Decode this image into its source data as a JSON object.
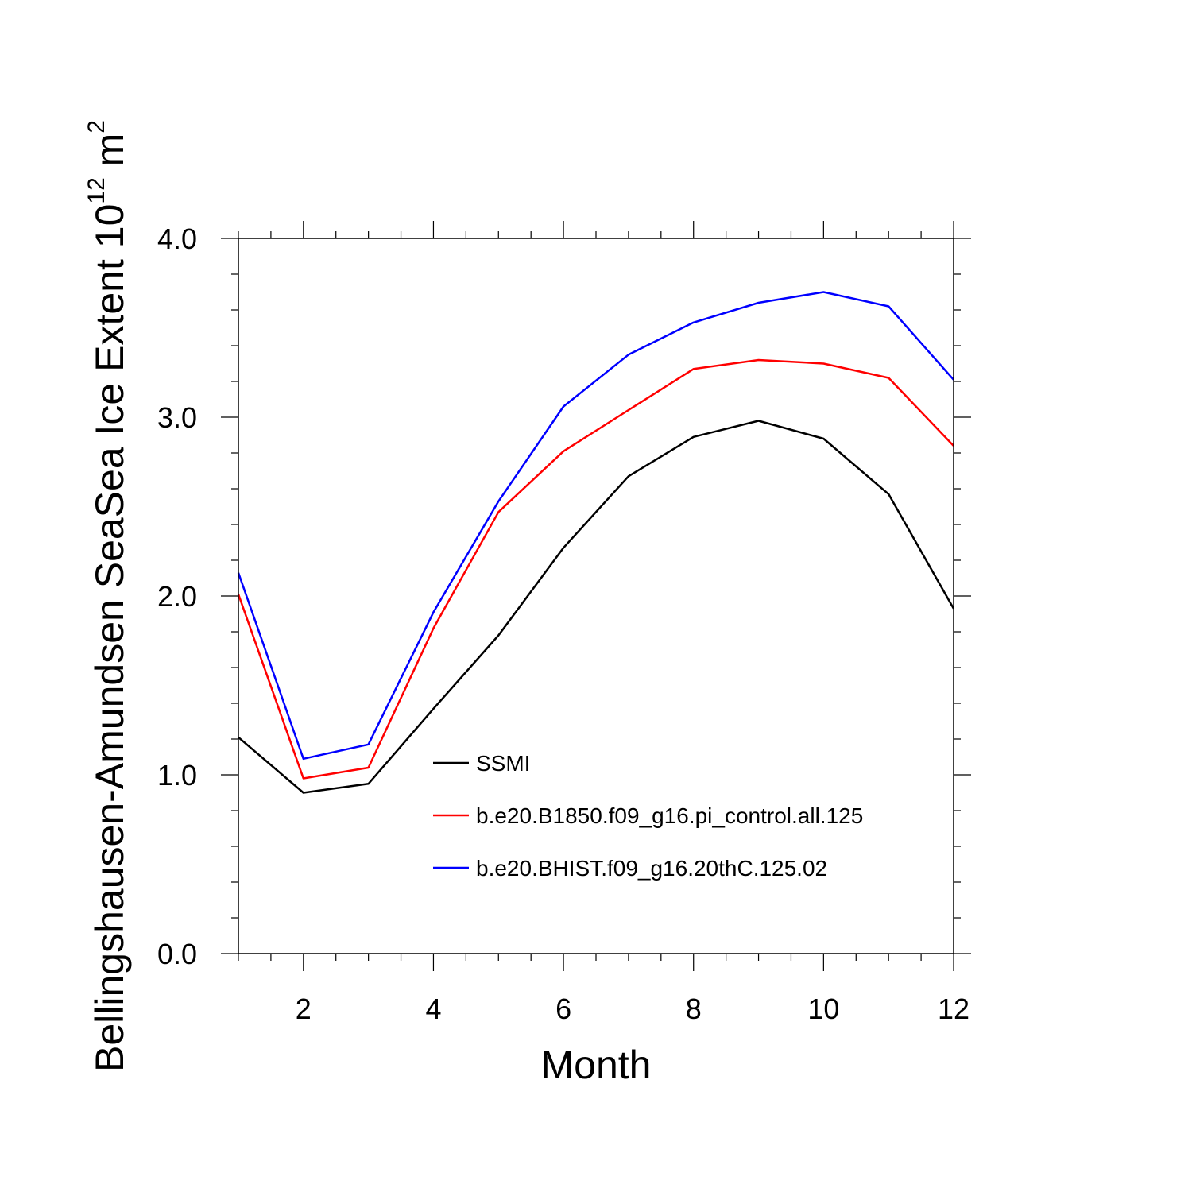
{
  "chart_data": {
    "type": "line",
    "xlabel": "Month",
    "ylabel": {
      "text": "Bellingshausen-Amundsen SeaSea Ice Extent 10",
      "exponent": "12",
      "unit": " m",
      "unit_exponent": "2"
    },
    "xlim": [
      1,
      12
    ],
    "ylim": [
      0,
      4
    ],
    "x_ticks": [
      2,
      4,
      6,
      8,
      10,
      12
    ],
    "x_tick_labels": [
      "2",
      "4",
      "6",
      "8",
      "10",
      "12"
    ],
    "y_ticks": [
      0,
      1,
      2,
      3,
      4
    ],
    "y_tick_labels": [
      "0.0",
      "1.0",
      "2.0",
      "3.0",
      "4.0"
    ],
    "grid": false,
    "legend_position": "center",
    "x": [
      1,
      2,
      3,
      4,
      5,
      6,
      7,
      8,
      9,
      10,
      11,
      12
    ],
    "series": [
      {
        "name": "SSMI",
        "color": "#000000",
        "values": [
          1.21,
          0.9,
          0.95,
          1.37,
          1.78,
          2.27,
          2.67,
          2.89,
          2.98,
          2.88,
          2.57,
          1.93
        ]
      },
      {
        "name": "b.e20.B1850.f09_g16.pi_control.all.125",
        "color": "#ff0000",
        "values": [
          2.01,
          0.98,
          1.04,
          1.82,
          2.47,
          2.81,
          3.04,
          3.27,
          3.32,
          3.3,
          3.22,
          2.84
        ]
      },
      {
        "name": "b.e20.BHIST.f09_g16.20thC.125.02",
        "color": "#0000ff",
        "values": [
          2.13,
          1.09,
          1.17,
          1.91,
          2.53,
          3.06,
          3.35,
          3.53,
          3.64,
          3.7,
          3.62,
          3.21
        ]
      }
    ]
  }
}
